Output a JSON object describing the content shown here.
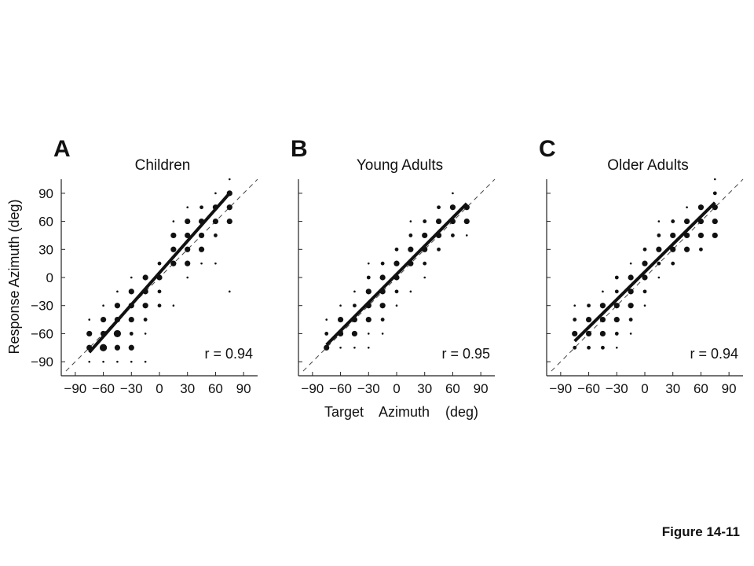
{
  "figure_caption": "Figure 14-11",
  "shared_xlabel": "Target    Azimuth    (deg)",
  "shared_ylabel": "Response Azimuth (deg)",
  "chart_data": [
    {
      "type": "scatter",
      "panel": "A",
      "title": "Children",
      "annotation": "r = 0.94",
      "xlim": [
        -105,
        105
      ],
      "ylim": [
        -105,
        105
      ],
      "xticks": [
        -90,
        -60,
        -30,
        0,
        30,
        60,
        90
      ],
      "yticks": [
        -90,
        -60,
        -30,
        0,
        30,
        60,
        90
      ],
      "xtick_labels": [
        "−90",
        "−60",
        "−30",
        "0",
        "30",
        "60",
        "90"
      ],
      "ytick_labels": [
        "90",
        "60",
        "30",
        "0",
        "−30",
        "−60",
        "−90"
      ],
      "diagonal": true,
      "fit_line": [
        [
          -75,
          -80
        ],
        [
          75,
          90
        ]
      ],
      "points": [
        [
          -75,
          -90,
          1
        ],
        [
          -75,
          -75,
          3
        ],
        [
          -75,
          -60,
          3
        ],
        [
          -75,
          -45,
          1
        ],
        [
          -60,
          -90,
          1
        ],
        [
          -60,
          -75,
          4
        ],
        [
          -60,
          -60,
          3
        ],
        [
          -60,
          -45,
          3
        ],
        [
          -60,
          -30,
          1
        ],
        [
          -45,
          -90,
          1
        ],
        [
          -45,
          -75,
          3
        ],
        [
          -45,
          -60,
          4
        ],
        [
          -45,
          -45,
          3
        ],
        [
          -45,
          -30,
          3
        ],
        [
          -45,
          -15,
          1
        ],
        [
          -30,
          -90,
          1
        ],
        [
          -30,
          -75,
          3
        ],
        [
          -30,
          -60,
          2
        ],
        [
          -30,
          -45,
          3
        ],
        [
          -30,
          -30,
          3
        ],
        [
          -30,
          -15,
          3
        ],
        [
          -30,
          0,
          1
        ],
        [
          -15,
          -90,
          1
        ],
        [
          -15,
          -60,
          1
        ],
        [
          -15,
          -45,
          2
        ],
        [
          -15,
          -30,
          3
        ],
        [
          -15,
          -15,
          3
        ],
        [
          -15,
          0,
          3
        ],
        [
          0,
          -30,
          2
        ],
        [
          0,
          -15,
          2
        ],
        [
          0,
          0,
          3
        ],
        [
          0,
          15,
          2
        ],
        [
          15,
          -30,
          1
        ],
        [
          15,
          15,
          3
        ],
        [
          15,
          30,
          3
        ],
        [
          15,
          45,
          3
        ],
        [
          15,
          60,
          1
        ],
        [
          30,
          0,
          1
        ],
        [
          30,
          15,
          3
        ],
        [
          30,
          30,
          3
        ],
        [
          30,
          45,
          3
        ],
        [
          30,
          60,
          3
        ],
        [
          30,
          75,
          1
        ],
        [
          45,
          15,
          1
        ],
        [
          45,
          30,
          3
        ],
        [
          45,
          45,
          3
        ],
        [
          45,
          60,
          3
        ],
        [
          45,
          75,
          2
        ],
        [
          60,
          15,
          1
        ],
        [
          60,
          45,
          2
        ],
        [
          60,
          60,
          3
        ],
        [
          60,
          75,
          3
        ],
        [
          60,
          90,
          1
        ],
        [
          75,
          -15,
          1
        ],
        [
          75,
          60,
          3
        ],
        [
          75,
          75,
          3
        ],
        [
          75,
          90,
          3
        ],
        [
          75,
          105,
          1
        ]
      ]
    },
    {
      "type": "scatter",
      "panel": "B",
      "title": "Young Adults",
      "annotation": "r = 0.95",
      "xlim": [
        -105,
        105
      ],
      "ylim": [
        -105,
        105
      ],
      "xticks": [
        -90,
        -60,
        -30,
        0,
        30,
        60,
        90
      ],
      "yticks": [
        -90,
        -60,
        -30,
        0,
        30,
        60,
        90
      ],
      "xtick_labels": [
        "−90",
        "−60",
        "−30",
        "0",
        "30",
        "60",
        "90"
      ],
      "ytick_labels": [],
      "diagonal": true,
      "fit_line": [
        [
          -75,
          -72
        ],
        [
          75,
          79
        ]
      ],
      "points": [
        [
          -75,
          -75,
          3
        ],
        [
          -75,
          -60,
          2
        ],
        [
          -75,
          -45,
          1
        ],
        [
          -60,
          -75,
          1
        ],
        [
          -60,
          -60,
          3
        ],
        [
          -60,
          -45,
          3
        ],
        [
          -60,
          -30,
          1
        ],
        [
          -45,
          -75,
          1
        ],
        [
          -45,
          -60,
          3
        ],
        [
          -45,
          -45,
          3
        ],
        [
          -45,
          -30,
          2
        ],
        [
          -45,
          -15,
          1
        ],
        [
          -30,
          -75,
          1
        ],
        [
          -30,
          -60,
          1
        ],
        [
          -30,
          -45,
          3
        ],
        [
          -30,
          -30,
          3
        ],
        [
          -30,
          -15,
          3
        ],
        [
          -30,
          0,
          2
        ],
        [
          -30,
          15,
          1
        ],
        [
          -15,
          -60,
          1
        ],
        [
          -15,
          -45,
          2
        ],
        [
          -15,
          -30,
          3
        ],
        [
          -15,
          -15,
          3
        ],
        [
          -15,
          0,
          3
        ],
        [
          -15,
          15,
          2
        ],
        [
          0,
          -30,
          1
        ],
        [
          0,
          -15,
          2
        ],
        [
          0,
          0,
          3
        ],
        [
          0,
          15,
          3
        ],
        [
          0,
          30,
          2
        ],
        [
          15,
          -15,
          1
        ],
        [
          15,
          15,
          3
        ],
        [
          15,
          30,
          3
        ],
        [
          15,
          45,
          2
        ],
        [
          15,
          60,
          1
        ],
        [
          30,
          0,
          1
        ],
        [
          30,
          15,
          2
        ],
        [
          30,
          30,
          3
        ],
        [
          30,
          45,
          3
        ],
        [
          30,
          60,
          2
        ],
        [
          45,
          30,
          2
        ],
        [
          45,
          45,
          3
        ],
        [
          45,
          60,
          3
        ],
        [
          45,
          75,
          2
        ],
        [
          60,
          45,
          2
        ],
        [
          60,
          60,
          3
        ],
        [
          60,
          75,
          3
        ],
        [
          60,
          90,
          1
        ],
        [
          75,
          45,
          1
        ],
        [
          75,
          60,
          3
        ],
        [
          75,
          75,
          3
        ]
      ]
    },
    {
      "type": "scatter",
      "panel": "C",
      "title": "Older Adults",
      "annotation": "r = 0.94",
      "xlim": [
        -105,
        105
      ],
      "ylim": [
        -105,
        105
      ],
      "xticks": [
        -90,
        -60,
        -30,
        0,
        30,
        60,
        90
      ],
      "yticks": [
        -90,
        -60,
        -30,
        0,
        30,
        60,
        90
      ],
      "xtick_labels": [
        "−90",
        "−60",
        "−30",
        "0",
        "30",
        "60",
        "90"
      ],
      "ytick_labels": [],
      "diagonal": true,
      "fit_line": [
        [
          -75,
          -68
        ],
        [
          75,
          80
        ]
      ],
      "points": [
        [
          -75,
          -75,
          2
        ],
        [
          -75,
          -60,
          3
        ],
        [
          -75,
          -45,
          2
        ],
        [
          -75,
          -30,
          1
        ],
        [
          -60,
          -75,
          2
        ],
        [
          -60,
          -60,
          3
        ],
        [
          -60,
          -45,
          3
        ],
        [
          -60,
          -30,
          2
        ],
        [
          -45,
          -75,
          2
        ],
        [
          -45,
          -60,
          3
        ],
        [
          -45,
          -45,
          3
        ],
        [
          -45,
          -30,
          3
        ],
        [
          -45,
          -15,
          1
        ],
        [
          -30,
          -75,
          1
        ],
        [
          -30,
          -60,
          2
        ],
        [
          -30,
          -45,
          3
        ],
        [
          -30,
          -30,
          3
        ],
        [
          -30,
          -15,
          2
        ],
        [
          -30,
          0,
          2
        ],
        [
          -15,
          -60,
          1
        ],
        [
          -15,
          -45,
          2
        ],
        [
          -15,
          -30,
          3
        ],
        [
          -15,
          -15,
          3
        ],
        [
          -15,
          0,
          3
        ],
        [
          -15,
          15,
          1
        ],
        [
          0,
          -30,
          1
        ],
        [
          0,
          -15,
          2
        ],
        [
          0,
          0,
          3
        ],
        [
          0,
          15,
          3
        ],
        [
          0,
          30,
          2
        ],
        [
          15,
          0,
          1
        ],
        [
          15,
          15,
          2
        ],
        [
          15,
          30,
          3
        ],
        [
          15,
          45,
          2
        ],
        [
          15,
          60,
          1
        ],
        [
          30,
          15,
          2
        ],
        [
          30,
          30,
          3
        ],
        [
          30,
          45,
          3
        ],
        [
          30,
          60,
          2
        ],
        [
          45,
          30,
          3
        ],
        [
          45,
          45,
          3
        ],
        [
          45,
          60,
          3
        ],
        [
          45,
          75,
          1
        ],
        [
          60,
          30,
          2
        ],
        [
          60,
          45,
          3
        ],
        [
          60,
          60,
          3
        ],
        [
          60,
          75,
          3
        ],
        [
          75,
          45,
          3
        ],
        [
          75,
          60,
          3
        ],
        [
          75,
          75,
          3
        ],
        [
          75,
          90,
          2
        ],
        [
          75,
          105,
          1
        ]
      ]
    }
  ]
}
